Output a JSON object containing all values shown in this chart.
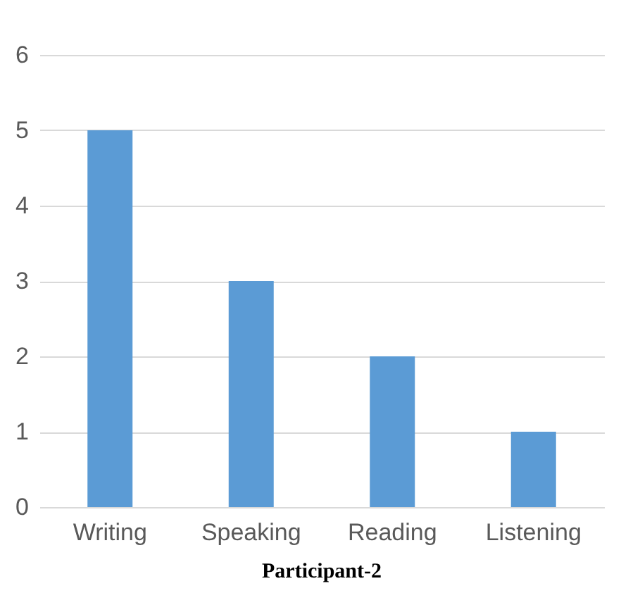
{
  "chart_data": {
    "type": "bar",
    "title": "Participant-2",
    "categories": [
      "Writing",
      "Speaking",
      "Reading",
      "Listening"
    ],
    "values": [
      5,
      3,
      2,
      1
    ],
    "color": "#5b9bd5",
    "ylim": [
      0,
      6
    ],
    "yticks": [
      0,
      1,
      2,
      3,
      4,
      5,
      6
    ],
    "grid": "y"
  }
}
